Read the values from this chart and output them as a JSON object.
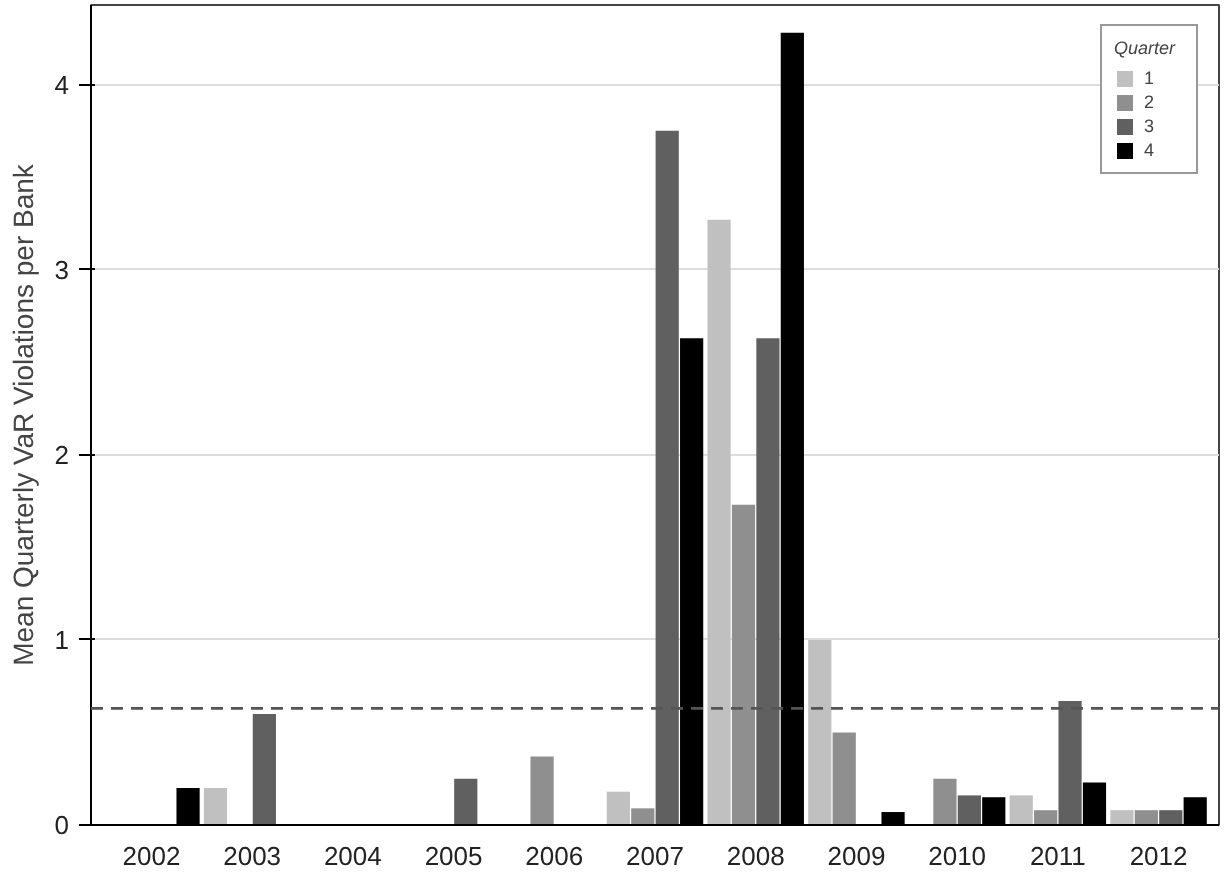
{
  "chart_data": {
    "type": "bar",
    "ylabel": "Mean Quarterly VaR Violations per Bank",
    "legend_title": "Quarter",
    "legend": "top right",
    "grid": "y",
    "categories": [
      "2002",
      "2003",
      "2004",
      "2005",
      "2006",
      "2007",
      "2008",
      "2009",
      "2010",
      "2011",
      "2012"
    ],
    "ylim": [
      0,
      4.43
    ],
    "yticks": [
      0,
      1,
      2,
      3,
      4
    ],
    "series": [
      {
        "name": "1",
        "color": "#c0c0c0",
        "values": [
          0,
          0.2,
          0,
          0,
          0,
          0.18,
          3.27,
          1.0,
          0,
          0.16,
          0.08
        ]
      },
      {
        "name": "2",
        "color": "#8f8f8f",
        "values": [
          0,
          0,
          0,
          0,
          0.37,
          0.09,
          1.73,
          0.5,
          0.25,
          0.08,
          0.08
        ]
      },
      {
        "name": "3",
        "color": "#606060",
        "values": [
          0,
          0.6,
          0,
          0.25,
          0,
          3.75,
          2.63,
          0,
          0.16,
          0.67,
          0.08
        ]
      },
      {
        "name": "4",
        "color": "#000000",
        "values": [
          0.2,
          0,
          0,
          0,
          0,
          2.63,
          4.28,
          0.07,
          0.15,
          0.23,
          0.15
        ]
      }
    ],
    "ref_lines": [
      {
        "axis": "y",
        "value": 0.63,
        "line_style": "dashed",
        "color": "#555555"
      }
    ]
  }
}
